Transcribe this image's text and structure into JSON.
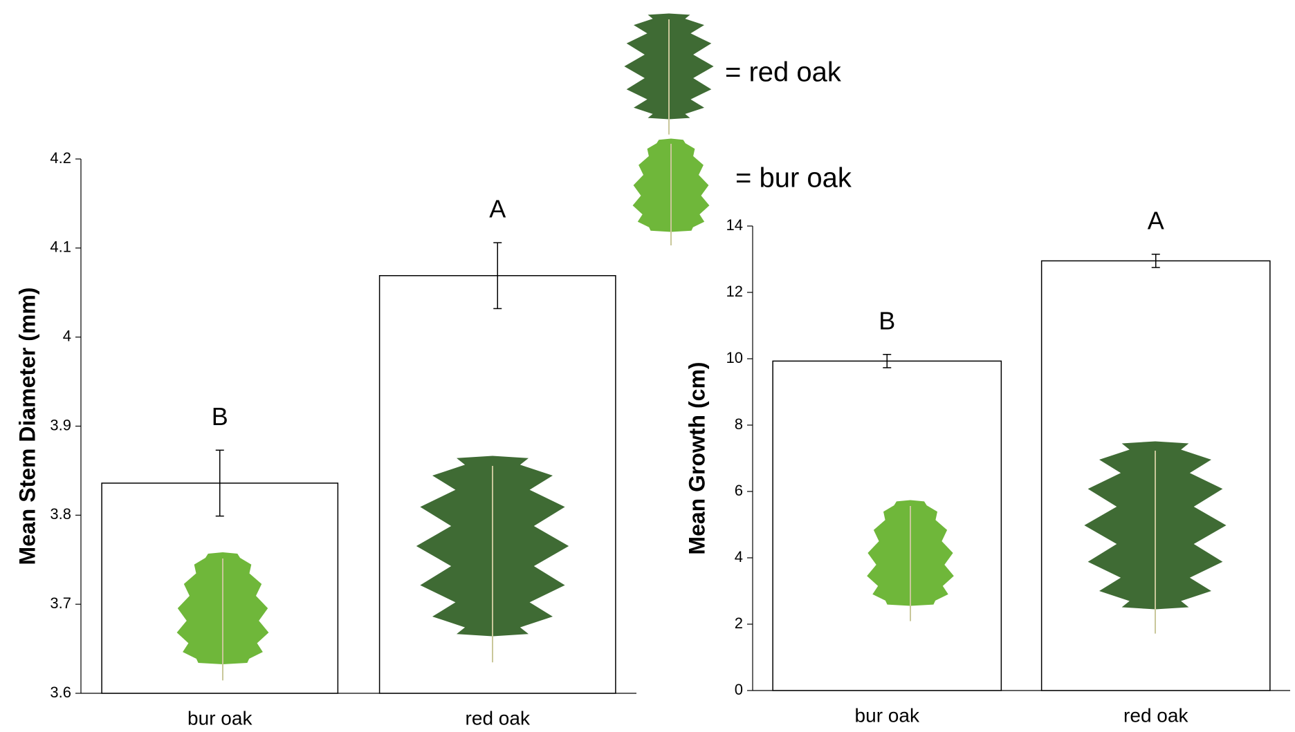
{
  "legend": [
    "= red oak",
    "= bur oak"
  ],
  "chart_data": [
    {
      "type": "bar",
      "ylabel": "Mean Stem Diameter (mm)",
      "categories": [
        "bur oak",
        "red oak"
      ],
      "values": [
        3.836,
        4.069
      ],
      "errors": [
        0.037,
        0.037
      ],
      "annotations": [
        "B",
        "A"
      ],
      "color": "#ffffff",
      "ylim": [
        3.6,
        4.2
      ],
      "yticks": [
        3.6,
        3.7,
        3.8,
        3.9,
        4,
        4.1,
        4.2
      ]
    },
    {
      "type": "bar",
      "ylabel": "Mean Growth (cm)",
      "categories": [
        "bur oak",
        "red oak"
      ],
      "values": [
        9.93,
        12.95
      ],
      "errors": [
        0.2,
        0.2
      ],
      "annotations": [
        "B",
        "A"
      ],
      "color": "#ffffff",
      "ylim": [
        0,
        14
      ],
      "yticks": [
        0,
        2,
        4,
        6,
        8,
        10,
        12,
        14
      ]
    }
  ]
}
